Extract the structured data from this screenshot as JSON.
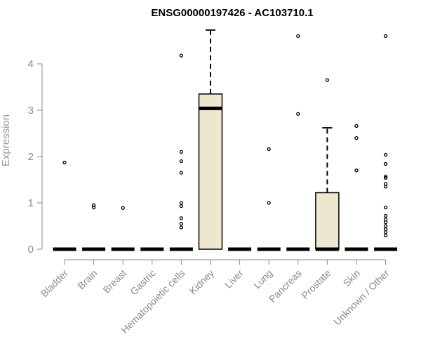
{
  "chart_data": {
    "type": "boxplot",
    "title": "ENSG00000197426 - AC103710.1",
    "ylabel": "Expression",
    "xlabel": "",
    "ylim": [
      0,
      4.8
    ],
    "yticks": [
      0,
      1,
      2,
      3,
      4
    ],
    "box_color": "#ede7cf",
    "categories": [
      "Bladder",
      "Brain",
      "Breast",
      "Gastric",
      "Hematopoietic cells",
      "Kidney",
      "Liver",
      "Lung",
      "Pancreas",
      "Prostate",
      "Skin",
      "Unknown / Other"
    ],
    "boxes": [
      {
        "q1": 0,
        "median": 0,
        "q3": 0,
        "whisker_low": 0,
        "whisker_high": 0,
        "outliers": [
          1.87
        ]
      },
      {
        "q1": 0,
        "median": 0,
        "q3": 0,
        "whisker_low": 0,
        "whisker_high": 0,
        "outliers": [
          0.95,
          0.9
        ]
      },
      {
        "q1": 0,
        "median": 0,
        "q3": 0,
        "whisker_low": 0,
        "whisker_high": 0,
        "outliers": [
          0.89
        ]
      },
      {
        "q1": 0,
        "median": 0,
        "q3": 0,
        "whisker_low": 0,
        "whisker_high": 0,
        "outliers": []
      },
      {
        "q1": 0,
        "median": 0,
        "q3": 0,
        "whisker_low": 0,
        "whisker_high": 0,
        "outliers": [
          4.18,
          2.1,
          1.9,
          1.65,
          1.0,
          0.93,
          0.67,
          0.55,
          0.47
        ]
      },
      {
        "q1": 0,
        "median": 3.04,
        "q3": 3.35,
        "whisker_low": 0,
        "whisker_high": 4.73,
        "outliers": []
      },
      {
        "q1": 0,
        "median": 0,
        "q3": 0,
        "whisker_low": 0,
        "whisker_high": 0,
        "outliers": []
      },
      {
        "q1": 0,
        "median": 0,
        "q3": 0,
        "whisker_low": 0,
        "whisker_high": 0,
        "outliers": [
          2.16,
          1.0
        ]
      },
      {
        "q1": 0,
        "median": 0,
        "q3": 0,
        "whisker_low": 0,
        "whisker_high": 0,
        "outliers": [
          4.6,
          2.92
        ]
      },
      {
        "q1": 0,
        "median": 0,
        "q3": 1.22,
        "whisker_low": 0,
        "whisker_high": 2.62,
        "outliers": [
          3.65
        ]
      },
      {
        "q1": 0,
        "median": 0,
        "q3": 0,
        "whisker_low": 0,
        "whisker_high": 0,
        "outliers": [
          2.66,
          2.4,
          1.7
        ]
      },
      {
        "q1": 0,
        "median": 0,
        "q3": 0,
        "whisker_low": 0,
        "whisker_high": 0,
        "outliers": [
          4.6,
          2.04,
          1.84,
          1.57,
          1.54,
          1.41,
          1.35,
          0.9,
          0.72,
          0.64,
          0.58,
          0.5,
          0.43,
          0.37,
          0.3
        ]
      }
    ]
  }
}
